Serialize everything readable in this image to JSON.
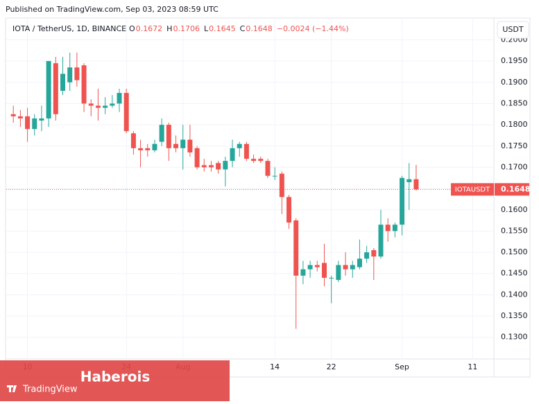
{
  "header": {
    "published": "Published on TradingView.com, Sep 03, 2023 08:59 UTC",
    "symbol": "IOTA / TetherUS, 1D, BINANCE",
    "ohlc": [
      {
        "label": "O",
        "value": 0.1672
      },
      {
        "label": "H",
        "value": 0.1706
      },
      {
        "label": "L",
        "value": 0.1645
      },
      {
        "label": "C",
        "value": 0.1648
      }
    ],
    "change": "−0.0024 (−1.44%)",
    "currency": "USDT"
  },
  "chart_data": {
    "type": "candlestick",
    "x": [
      "2023-07-08",
      "2023-07-09",
      "2023-07-10",
      "2023-07-11",
      "2023-07-12",
      "2023-07-13",
      "2023-07-14",
      "2023-07-15",
      "2023-07-16",
      "2023-07-17",
      "2023-07-18",
      "2023-07-19",
      "2023-07-20",
      "2023-07-21",
      "2023-07-22",
      "2023-07-23",
      "2023-07-24",
      "2023-07-25",
      "2023-07-26",
      "2023-07-27",
      "2023-07-28",
      "2023-07-29",
      "2023-07-30",
      "2023-07-31",
      "2023-08-01",
      "2023-08-02",
      "2023-08-03",
      "2023-08-04",
      "2023-08-05",
      "2023-08-06",
      "2023-08-07",
      "2023-08-08",
      "2023-08-09",
      "2023-08-10",
      "2023-08-11",
      "2023-08-12",
      "2023-08-13",
      "2023-08-14",
      "2023-08-15",
      "2023-08-16",
      "2023-08-17",
      "2023-08-18",
      "2023-08-19",
      "2023-08-20",
      "2023-08-21",
      "2023-08-22",
      "2023-08-23",
      "2023-08-24",
      "2023-08-25",
      "2023-08-26",
      "2023-08-27",
      "2023-08-28",
      "2023-08-29",
      "2023-08-30",
      "2023-08-31",
      "2023-09-01",
      "2023-09-02",
      "2023-09-03"
    ],
    "open": [
      0.1825,
      0.182,
      0.182,
      0.179,
      0.181,
      0.1815,
      0.1945,
      0.188,
      0.19,
      0.1935,
      0.194,
      0.185,
      0.1845,
      0.184,
      0.1845,
      0.185,
      0.1875,
      0.178,
      0.1745,
      0.1745,
      0.174,
      0.176,
      0.18,
      0.1755,
      0.1745,
      0.1765,
      0.1745,
      0.1705,
      0.1705,
      0.171,
      0.1695,
      0.1715,
      0.1745,
      0.1755,
      0.172,
      0.172,
      0.1715,
      0.168,
      0.1685,
      0.163,
      0.1575,
      0.1445,
      0.146,
      0.147,
      0.1475,
      0.144,
      0.1435,
      0.147,
      0.146,
      0.1465,
      0.1485,
      0.1505,
      0.149,
      0.1565,
      0.155,
      0.1565,
      0.1665,
      0.1672
    ],
    "high": [
      0.1845,
      0.1835,
      0.184,
      0.1825,
      0.1845,
      0.195,
      0.196,
      0.196,
      0.197,
      0.197,
      0.1945,
      0.186,
      0.1885,
      0.1865,
      0.187,
      0.1885,
      0.1885,
      0.1785,
      0.1765,
      0.1755,
      0.1765,
      0.1815,
      0.1805,
      0.1775,
      0.18,
      0.18,
      0.175,
      0.172,
      0.1715,
      0.1715,
      0.1725,
      0.1765,
      0.176,
      0.176,
      0.173,
      0.1725,
      0.172,
      0.17,
      0.169,
      0.1635,
      0.158,
      0.148,
      0.148,
      0.148,
      0.152,
      0.1445,
      0.148,
      0.15,
      0.148,
      0.153,
      0.1515,
      0.151,
      0.16,
      0.158,
      0.157,
      0.168,
      0.171,
      0.1706
    ],
    "low": [
      0.1805,
      0.1795,
      0.176,
      0.1775,
      0.1785,
      0.1795,
      0.181,
      0.187,
      0.188,
      0.189,
      0.183,
      0.182,
      0.181,
      0.1825,
      0.184,
      0.183,
      0.178,
      0.173,
      0.17,
      0.1725,
      0.1735,
      0.175,
      0.1715,
      0.1735,
      0.1695,
      0.1725,
      0.1695,
      0.169,
      0.169,
      0.1685,
      0.1655,
      0.17,
      0.1725,
      0.1715,
      0.171,
      0.171,
      0.1675,
      0.167,
      0.159,
      0.1555,
      0.132,
      0.1425,
      0.144,
      0.1455,
      0.142,
      0.138,
      0.143,
      0.1445,
      0.144,
      0.146,
      0.1475,
      0.1435,
      0.1485,
      0.1525,
      0.1535,
      0.154,
      0.16,
      0.1645
    ],
    "close": [
      0.182,
      0.1815,
      0.179,
      0.1815,
      0.1815,
      0.195,
      0.1825,
      0.192,
      0.1935,
      0.1905,
      0.185,
      0.1845,
      0.184,
      0.1845,
      0.185,
      0.1875,
      0.1785,
      0.1745,
      0.174,
      0.174,
      0.1755,
      0.18,
      0.1745,
      0.1745,
      0.1765,
      0.1735,
      0.17,
      0.17,
      0.17,
      0.1695,
      0.1715,
      0.1745,
      0.1755,
      0.172,
      0.1715,
      0.1715,
      0.168,
      0.168,
      0.163,
      0.157,
      0.1445,
      0.146,
      0.147,
      0.1465,
      0.144,
      0.144,
      0.147,
      0.146,
      0.147,
      0.1485,
      0.15,
      0.149,
      0.1565,
      0.155,
      0.1565,
      0.1675,
      0.1672,
      0.1648
    ],
    "up_color": "#26a69a",
    "down_color": "#ef5350",
    "xlim": [
      "2023-07-07",
      "2023-09-14"
    ],
    "xticks": [
      {
        "value": "2023-07-10",
        "label": "10"
      },
      {
        "value": "2023-07-24",
        "label": "24"
      },
      {
        "value": "2023-08-01",
        "label": "Aug"
      },
      {
        "value": "2023-08-14",
        "label": "14"
      },
      {
        "value": "2023-08-22",
        "label": "22"
      },
      {
        "value": "2023-09-01",
        "label": "Sep"
      },
      {
        "value": "2023-09-11",
        "label": "11"
      }
    ],
    "ylim": [
      0.1249,
      0.2004
    ],
    "yticks": [
      {
        "value": 0.13,
        "label": "0.1300"
      },
      {
        "value": 0.135,
        "label": "0.1350"
      },
      {
        "value": 0.14,
        "label": "0.1400"
      },
      {
        "value": 0.145,
        "label": "0.1450"
      },
      {
        "value": 0.15,
        "label": "0.1500"
      },
      {
        "value": 0.155,
        "label": "0.1550"
      },
      {
        "value": 0.16,
        "label": "0.1600"
      },
      {
        "value": 0.165,
        "label": "0.1650"
      },
      {
        "value": 0.17,
        "label": "0.1700"
      },
      {
        "value": 0.175,
        "label": "0.1750"
      },
      {
        "value": 0.18,
        "label": "0.1800"
      },
      {
        "value": 0.185,
        "label": "0.1850"
      },
      {
        "value": 0.19,
        "label": "0.1900"
      },
      {
        "value": 0.195,
        "label": "0.1950"
      },
      {
        "value": 0.2,
        "label": "0.2000"
      }
    ],
    "grid": true,
    "last_price": {
      "name": "IOTAUSDT",
      "value": 0.1648
    },
    "watermark": "Haberois",
    "brand": "TradingView"
  }
}
